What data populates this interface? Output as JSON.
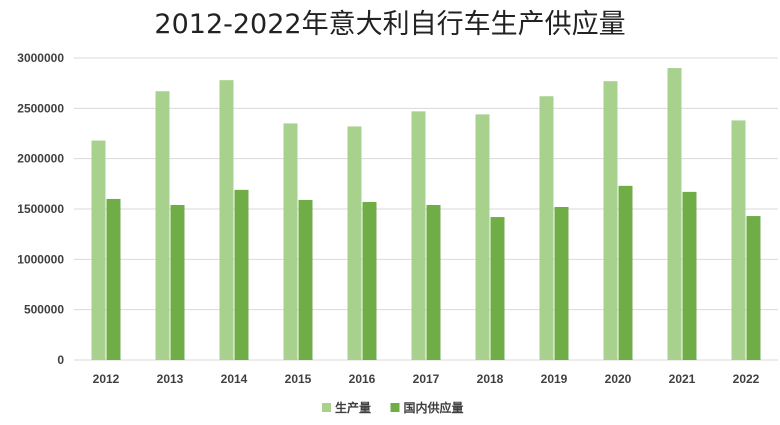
{
  "chart_data": {
    "type": "bar",
    "title": "2012-2022年意大利自行车生产供应量",
    "categories": [
      "2012",
      "2013",
      "2014",
      "2015",
      "2016",
      "2017",
      "2018",
      "2019",
      "2020",
      "2021",
      "2022"
    ],
    "series": [
      {
        "name": "生产量",
        "color": "#a9d18e",
        "values": [
          2180000,
          2670000,
          2780000,
          2350000,
          2320000,
          2470000,
          2440000,
          2620000,
          2770000,
          2900000,
          2380000
        ]
      },
      {
        "name": "国内供应量",
        "color": "#70ad47",
        "values": [
          1600000,
          1540000,
          1690000,
          1590000,
          1570000,
          1540000,
          1420000,
          1520000,
          1730000,
          1670000,
          1430000
        ]
      }
    ],
    "y_ticks": [
      "0",
      "500000",
      "1000000",
      "1500000",
      "2000000",
      "2500000",
      "3000000"
    ],
    "ylim": [
      0,
      3000000
    ],
    "grid": true,
    "legend_position": "bottom"
  }
}
